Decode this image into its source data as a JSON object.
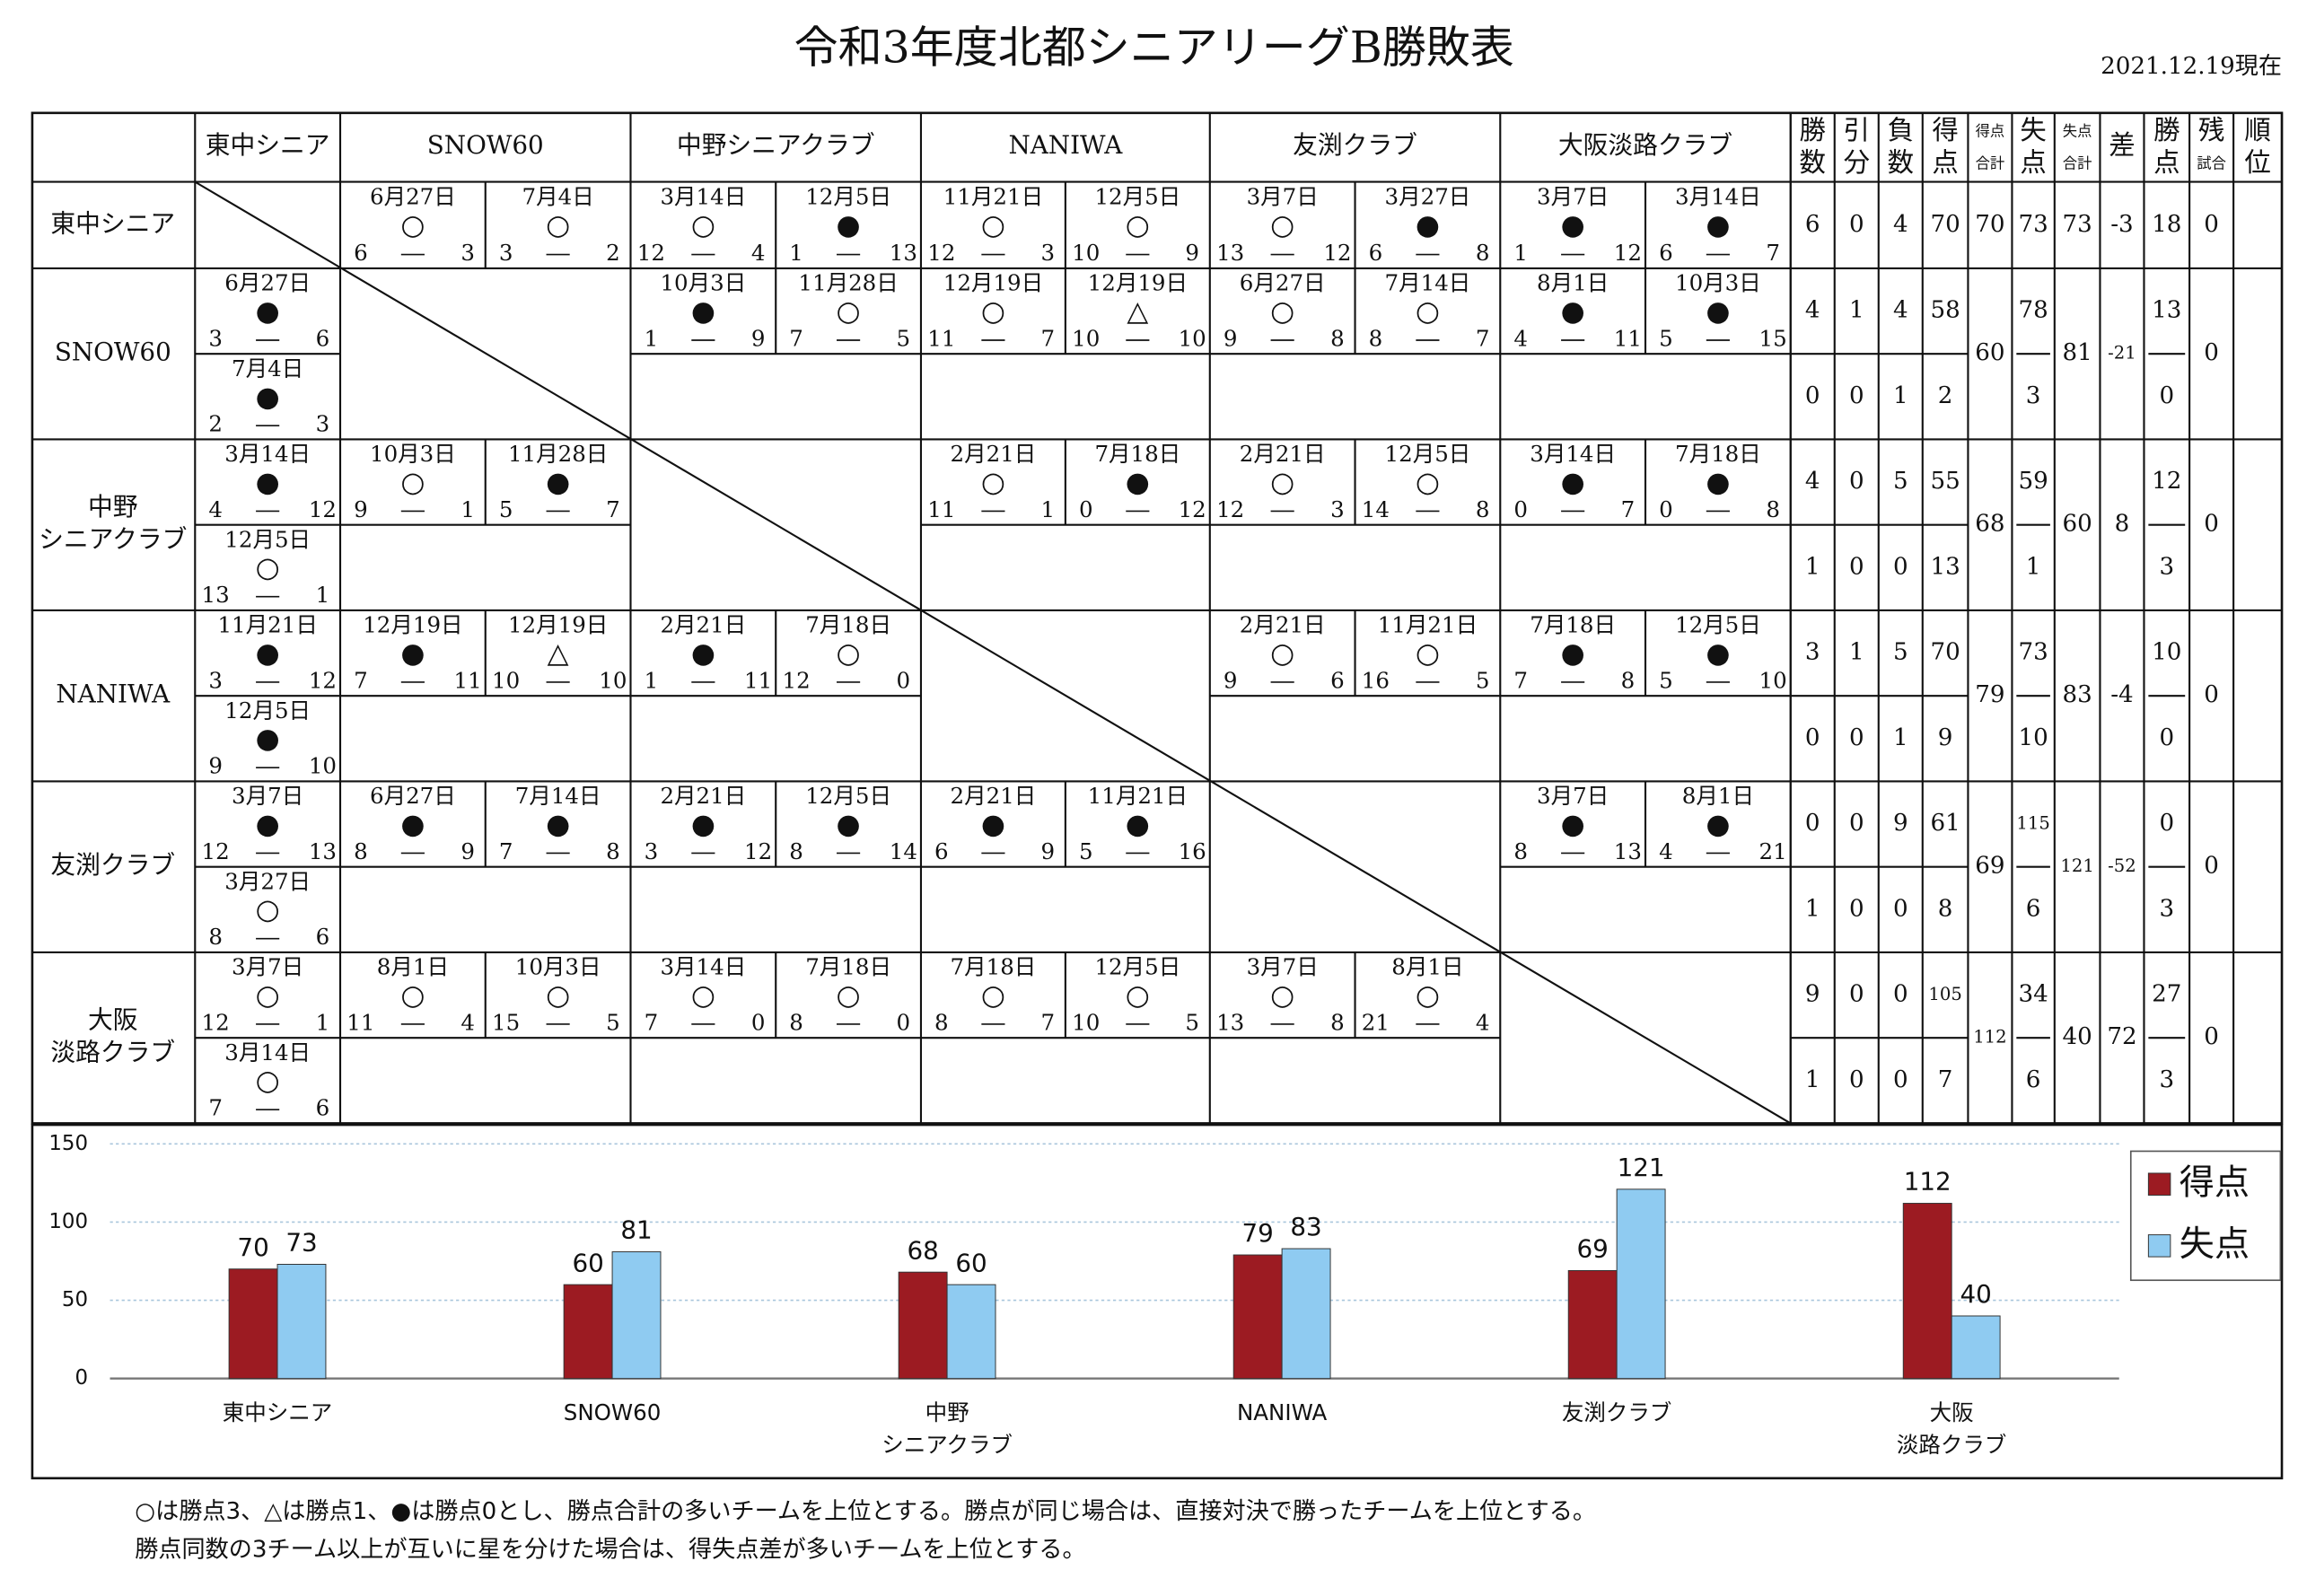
{
  "title": "令和3年度北都シニアリーグB勝敗表",
  "as_of": "2021.12.19現在",
  "table": {
    "columns": [
      "東中シニア",
      "SNOW60",
      "中野シニアクラブ",
      "NANIWA",
      "友渕クラブ",
      "大阪淡路クラブ"
    ],
    "stat_headers": [
      [
        "勝",
        "数"
      ],
      [
        "引",
        "分"
      ],
      [
        "負",
        "数"
      ],
      [
        "得",
        "点"
      ],
      [
        "得点",
        "合計"
      ],
      [
        "失",
        "点"
      ],
      [
        "失点",
        "合計"
      ],
      [
        "差"
      ],
      [
        "勝",
        "点"
      ],
      [
        "残",
        "試合"
      ],
      [
        "順",
        "位"
      ]
    ],
    "rows": [
      {
        "team": [
          "東中シニア"
        ],
        "games": [
          null,
          [
            [
              "6月27日",
              "○",
              6,
              3
            ],
            [
              "7月4日",
              "○",
              3,
              2
            ]
          ],
          [
            [
              "3月14日",
              "○",
              12,
              4
            ],
            [
              "12月5日",
              "●",
              1,
              13
            ]
          ],
          [
            [
              "11月21日",
              "○",
              12,
              3
            ],
            [
              "12月5日",
              "○",
              10,
              9
            ]
          ],
          [
            [
              "3月7日",
              "○",
              13,
              12
            ],
            [
              "3月27日",
              "●",
              6,
              8
            ]
          ],
          [
            [
              "3月7日",
              "●",
              1,
              12
            ],
            [
              "3月14日",
              "●",
              6,
              7
            ]
          ]
        ],
        "stats": [
          [
            6
          ],
          [
            0
          ],
          [
            4
          ],
          [
            70
          ],
          70,
          [
            73
          ],
          73,
          -3,
          [
            18
          ],
          0
        ]
      },
      {
        "team": [
          "SNOW60"
        ],
        "games": [
          [
            [
              "6月27日",
              "●",
              3,
              6
            ],
            [
              "7月4日",
              "●",
              2,
              3
            ]
          ],
          null,
          [
            [
              "10月3日",
              "●",
              1,
              9
            ],
            [
              "11月28日",
              "○",
              7,
              5
            ]
          ],
          [
            [
              "12月19日",
              "○",
              11,
              7
            ],
            [
              "12月19日",
              "△",
              10,
              10
            ]
          ],
          [
            [
              "6月27日",
              "○",
              9,
              8
            ],
            [
              "7月14日",
              "○",
              8,
              7
            ]
          ],
          [
            [
              "8月1日",
              "●",
              4,
              11
            ],
            [
              "10月3日",
              "●",
              5,
              15
            ]
          ]
        ],
        "stats": [
          [
            4,
            0
          ],
          [
            1,
            0
          ],
          [
            4,
            1
          ],
          [
            58,
            2
          ],
          60,
          [
            78,
            3
          ],
          81,
          -21,
          [
            13,
            0
          ],
          0
        ]
      },
      {
        "team": [
          "中野",
          "シニアクラブ"
        ],
        "games": [
          [
            [
              "3月14日",
              "●",
              4,
              12
            ],
            [
              "12月5日",
              "○",
              13,
              1
            ]
          ],
          [
            [
              "10月3日",
              "○",
              9,
              1
            ],
            [
              "11月28日",
              "●",
              5,
              7
            ]
          ],
          null,
          [
            [
              "2月21日",
              "○",
              11,
              1
            ],
            [
              "7月18日",
              "●",
              0,
              12
            ]
          ],
          [
            [
              "2月21日",
              "○",
              12,
              3
            ],
            [
              "12月5日",
              "○",
              14,
              8
            ]
          ],
          [
            [
              "3月14日",
              "●",
              0,
              7
            ],
            [
              "7月18日",
              "●",
              0,
              8
            ]
          ]
        ],
        "stats": [
          [
            4,
            1
          ],
          [
            0,
            0
          ],
          [
            5,
            0
          ],
          [
            55,
            13
          ],
          68,
          [
            59,
            1
          ],
          60,
          8,
          [
            12,
            3
          ],
          0
        ]
      },
      {
        "team": [
          "NANIWA"
        ],
        "games": [
          [
            [
              "11月21日",
              "●",
              3,
              12
            ],
            [
              "12月5日",
              "●",
              9,
              10
            ]
          ],
          [
            [
              "12月19日",
              "●",
              7,
              11
            ],
            [
              "12月19日",
              "△",
              10,
              10
            ]
          ],
          [
            [
              "2月21日",
              "●",
              1,
              11
            ],
            [
              "7月18日",
              "○",
              12,
              0
            ]
          ],
          null,
          [
            [
              "2月21日",
              "○",
              9,
              6
            ],
            [
              "11月21日",
              "○",
              16,
              5
            ]
          ],
          [
            [
              "7月18日",
              "●",
              7,
              8
            ],
            [
              "12月5日",
              "●",
              5,
              10
            ]
          ]
        ],
        "stats": [
          [
            3,
            0
          ],
          [
            1,
            0
          ],
          [
            5,
            1
          ],
          [
            70,
            9
          ],
          79,
          [
            73,
            10
          ],
          83,
          -4,
          [
            10,
            0
          ],
          0
        ]
      },
      {
        "team": [
          "友渕クラブ"
        ],
        "games": [
          [
            [
              "3月7日",
              "●",
              12,
              13
            ],
            [
              "3月27日",
              "○",
              8,
              6
            ]
          ],
          [
            [
              "6月27日",
              "●",
              8,
              9
            ],
            [
              "7月14日",
              "●",
              7,
              8
            ]
          ],
          [
            [
              "2月21日",
              "●",
              3,
              12
            ],
            [
              "12月5日",
              "●",
              8,
              14
            ]
          ],
          [
            [
              "2月21日",
              "●",
              6,
              9
            ],
            [
              "11月21日",
              "●",
              5,
              16
            ]
          ],
          null,
          [
            [
              "3月7日",
              "●",
              8,
              13
            ],
            [
              "8月1日",
              "●",
              4,
              21
            ]
          ]
        ],
        "stats": [
          [
            0,
            1
          ],
          [
            0,
            0
          ],
          [
            9,
            0
          ],
          [
            61,
            8
          ],
          69,
          [
            115,
            6
          ],
          121,
          -52,
          [
            0,
            3
          ],
          0
        ]
      },
      {
        "team": [
          "大阪",
          "淡路クラブ"
        ],
        "games": [
          [
            [
              "3月7日",
              "○",
              12,
              1
            ],
            [
              "3月14日",
              "○",
              7,
              6
            ]
          ],
          [
            [
              "8月1日",
              "○",
              11,
              4
            ],
            [
              "10月3日",
              "○",
              15,
              5
            ]
          ],
          [
            [
              "3月14日",
              "○",
              7,
              0
            ],
            [
              "7月18日",
              "○",
              8,
              0
            ]
          ],
          [
            [
              "7月18日",
              "○",
              8,
              7
            ],
            [
              "12月5日",
              "○",
              10,
              5
            ]
          ],
          [
            [
              "3月7日",
              "○",
              13,
              8
            ],
            [
              "8月1日",
              "○",
              21,
              4
            ]
          ],
          null
        ],
        "stats": [
          [
            9,
            1
          ],
          [
            0,
            0
          ],
          [
            0,
            0
          ],
          [
            105,
            7
          ],
          112,
          [
            34,
            6
          ],
          40,
          72,
          [
            27,
            3
          ],
          0
        ]
      }
    ]
  },
  "chart_data": {
    "type": "bar",
    "categories": [
      [
        "東中シニア"
      ],
      [
        "SNOW60"
      ],
      [
        "中野",
        "シニアクラブ"
      ],
      [
        "NANIWA"
      ],
      [
        "友渕クラブ"
      ],
      [
        "大阪",
        "淡路クラブ"
      ]
    ],
    "series": [
      {
        "name": "得点",
        "color": "#9c1b22",
        "values": [
          70,
          60,
          68,
          79,
          69,
          112
        ]
      },
      {
        "name": "失点",
        "color": "#8fcbf1",
        "values": [
          73,
          81,
          60,
          83,
          121,
          40
        ]
      }
    ],
    "ylim": [
      0,
      150
    ],
    "yticks": [
      0,
      50,
      100,
      150
    ],
    "grid": true,
    "legend": "right"
  },
  "notes": [
    "○は勝点3、△は勝点1、●は勝点0とし、勝点合計の多いチームを上位とする。勝点が同じ場合は、直接対決で勝ったチームを上位とする。",
    "勝点同数の3チーム以上が互いに星を分けた場合は、得失点差が多いチームを上位とする。"
  ]
}
